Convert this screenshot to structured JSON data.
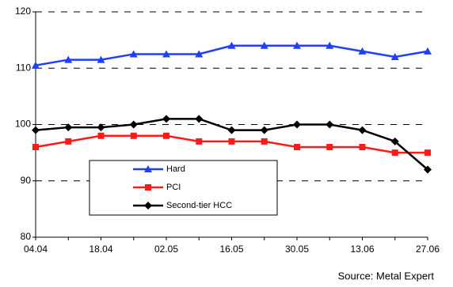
{
  "chart_data": {
    "type": "line",
    "categories": [
      "04.04",
      null,
      "18.04",
      null,
      "02.05",
      null,
      "16.05",
      null,
      "30.05",
      null,
      "13.06",
      null,
      "27.06"
    ],
    "series": [
      {
        "name": "Hard",
        "color": "#1f3fff",
        "marker": "triangle",
        "values": [
          110.5,
          111.5,
          111.5,
          112.5,
          112.5,
          112.5,
          114,
          114,
          114,
          114,
          113,
          112,
          113
        ]
      },
      {
        "name": "PCI",
        "color": "#ff1a1a",
        "marker": "square",
        "values": [
          96,
          97,
          98,
          98,
          98,
          97,
          97,
          97,
          96,
          96,
          96,
          95,
          95
        ]
      },
      {
        "name": "Second-tier HCC",
        "color": "#000000",
        "marker": "diamond",
        "values": [
          99,
          99.5,
          99.5,
          100,
          101,
          101,
          99,
          99,
          100,
          100,
          99,
          97,
          92
        ]
      }
    ],
    "ylim": [
      80,
      120
    ],
    "yticks": [
      80,
      90,
      100,
      110,
      120
    ],
    "grid": true,
    "source": "Source: Metal Expert"
  }
}
